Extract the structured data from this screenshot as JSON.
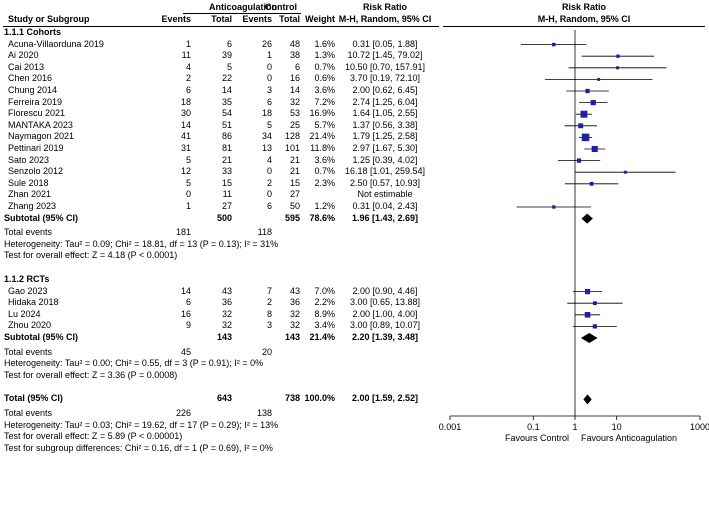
{
  "header": {
    "group1": "Anticoagulation",
    "group2": "Control",
    "rr_title": "Risk Ratio",
    "rr_title2": "Risk Ratio",
    "col_study": "Study or Subgroup",
    "col_events1": "Events",
    "col_total1": "Total",
    "col_events2": "Events",
    "col_total2": "Total",
    "col_weight": "Weight",
    "col_method": "M-H, Random, 95% CI",
    "col_method2": "M-H, Random, 95% CI"
  },
  "chart_data": {
    "type": "forest",
    "scale": "log",
    "xlim": [
      0.001,
      1000
    ],
    "x_ticks": [
      "0.001",
      "0.1",
      "1",
      "10",
      "1000"
    ],
    "xlabel_left": "Favours Control",
    "xlabel_right": "Favours Anticoagulation",
    "subgroups": [
      {
        "title": "1.1.1 Cohorts",
        "studies": [
          {
            "name": "Acuna-Villaorduna 2019",
            "e1": "1",
            "t1": "6",
            "e2": "26",
            "t2": "48",
            "weight": "1.6%",
            "ci": "0.31 [0.05, 1.88]",
            "rr": 0.31,
            "lo": 0.05,
            "hi": 1.88
          },
          {
            "name": "Ai 2020",
            "e1": "11",
            "t1": "39",
            "e2": "1",
            "t2": "38",
            "weight": "1.3%",
            "ci": "10.72 [1.45, 79.02]",
            "rr": 10.72,
            "lo": 1.45,
            "hi": 79.02
          },
          {
            "name": "Cai 2013",
            "e1": "4",
            "t1": "5",
            "e2": "0",
            "t2": "6",
            "weight": "0.7%",
            "ci": "10.50 [0.70, 157.91]",
            "rr": 10.5,
            "lo": 0.7,
            "hi": 157.91
          },
          {
            "name": "Chen 2016",
            "e1": "2",
            "t1": "22",
            "e2": "0",
            "t2": "16",
            "weight": "0.6%",
            "ci": "3.70 [0.19, 72.10]",
            "rr": 3.7,
            "lo": 0.19,
            "hi": 72.1
          },
          {
            "name": "Chung 2014",
            "e1": "6",
            "t1": "14",
            "e2": "3",
            "t2": "14",
            "weight": "3.6%",
            "ci": "2.00 [0.62, 6.45]",
            "rr": 2.0,
            "lo": 0.62,
            "hi": 6.45
          },
          {
            "name": "Ferreira 2019",
            "e1": "18",
            "t1": "35",
            "e2": "6",
            "t2": "32",
            "weight": "7.2%",
            "ci": "2.74 [1.25, 6.04]",
            "rr": 2.74,
            "lo": 1.25,
            "hi": 6.04
          },
          {
            "name": "Florescu 2021",
            "e1": "30",
            "t1": "54",
            "e2": "18",
            "t2": "53",
            "weight": "16.9%",
            "ci": "1.64 [1.05, 2.55]",
            "rr": 1.64,
            "lo": 1.05,
            "hi": 2.55
          },
          {
            "name": "MANTAKA 2023",
            "e1": "14",
            "t1": "51",
            "e2": "5",
            "t2": "25",
            "weight": "5.7%",
            "ci": "1.37 [0.56, 3.38]",
            "rr": 1.37,
            "lo": 0.56,
            "hi": 3.38
          },
          {
            "name": "Naymagon 2021",
            "e1": "41",
            "t1": "86",
            "e2": "34",
            "t2": "128",
            "weight": "21.4%",
            "ci": "1.79 [1.25, 2.58]",
            "rr": 1.79,
            "lo": 1.25,
            "hi": 2.58
          },
          {
            "name": "Pettinari 2019",
            "e1": "31",
            "t1": "81",
            "e2": "13",
            "t2": "101",
            "weight": "11.8%",
            "ci": "2.97 [1.67, 5.30]",
            "rr": 2.97,
            "lo": 1.67,
            "hi": 5.3
          },
          {
            "name": "Sato 2023",
            "e1": "5",
            "t1": "21",
            "e2": "4",
            "t2": "21",
            "weight": "3.6%",
            "ci": "1.25 [0.39, 4.02]",
            "rr": 1.25,
            "lo": 0.39,
            "hi": 4.02
          },
          {
            "name": "Senzolo 2012",
            "e1": "12",
            "t1": "33",
            "e2": "0",
            "t2": "21",
            "weight": "0.7%",
            "ci": "16.18 [1.01, 259.54]",
            "rr": 16.18,
            "lo": 1.01,
            "hi": 259.54
          },
          {
            "name": "Sule 2018",
            "e1": "5",
            "t1": "15",
            "e2": "2",
            "t2": "15",
            "weight": "2.3%",
            "ci": "2.50 [0.57, 10.93]",
            "rr": 2.5,
            "lo": 0.57,
            "hi": 10.93
          },
          {
            "name": "Zhan 2021",
            "e1": "0",
            "t1": "11",
            "e2": "0",
            "t2": "27",
            "weight": "",
            "ci": "Not estimable",
            "rr": null,
            "lo": null,
            "hi": null
          },
          {
            "name": "Zhang 2023",
            "e1": "1",
            "t1": "27",
            "e2": "6",
            "t2": "50",
            "weight": "1.2%",
            "ci": "0.31 [0.04, 2.43]",
            "rr": 0.31,
            "lo": 0.04,
            "hi": 2.43
          }
        ],
        "subtotal": {
          "label": "Subtotal (95% CI)",
          "t1": "500",
          "t2": "595",
          "weight": "78.6%",
          "ci": "1.96 [1.43, 2.69]",
          "rr": 1.96,
          "lo": 1.43,
          "hi": 2.69
        },
        "total_events": {
          "label": "Total events",
          "e1": "181",
          "e2": "118"
        },
        "heterogeneity": "Heterogeneity: Tau² = 0.09; Chi² = 18.81, df = 13 (P = 0.13); I² = 31%",
        "overall_effect": "Test for overall effect: Z = 4.18 (P < 0.0001)"
      },
      {
        "title": "1.1.2 RCTs",
        "studies": [
          {
            "name": "Gao 2023",
            "e1": "14",
            "t1": "43",
            "e2": "7",
            "t2": "43",
            "weight": "7.0%",
            "ci": "2.00 [0.90, 4.46]",
            "rr": 2.0,
            "lo": 0.9,
            "hi": 4.46
          },
          {
            "name": "Hidaka 2018",
            "e1": "6",
            "t1": "36",
            "e2": "2",
            "t2": "36",
            "weight": "2.2%",
            "ci": "3.00 [0.65, 13.88]",
            "rr": 3.0,
            "lo": 0.65,
            "hi": 13.88
          },
          {
            "name": "Lu 2024",
            "e1": "16",
            "t1": "32",
            "e2": "8",
            "t2": "32",
            "weight": "8.9%",
            "ci": "2.00 [1.00, 4.00]",
            "rr": 2.0,
            "lo": 1.0,
            "hi": 4.0
          },
          {
            "name": "Zhou 2020",
            "e1": "9",
            "t1": "32",
            "e2": "3",
            "t2": "32",
            "weight": "3.4%",
            "ci": "3.00 [0.89, 10.07]",
            "rr": 3.0,
            "lo": 0.89,
            "hi": 10.07
          }
        ],
        "subtotal": {
          "label": "Subtotal (95% CI)",
          "t1": "143",
          "t2": "143",
          "weight": "21.4%",
          "ci": "2.20 [1.39, 3.48]",
          "rr": 2.2,
          "lo": 1.39,
          "hi": 3.48
        },
        "total_events": {
          "label": "Total events",
          "e1": "45",
          "e2": "20"
        },
        "heterogeneity": "Heterogeneity: Tau² = 0.00; Chi² = 0.55, df = 3 (P = 0.91); I² = 0%",
        "overall_effect": "Test for overall effect: Z = 3.36 (P = 0.0008)"
      }
    ],
    "total": {
      "label": "Total (95% CI)",
      "t1": "643",
      "t2": "738",
      "weight": "100.0%",
      "ci": "2.00 [1.59, 2.52]",
      "rr": 2.0,
      "lo": 1.59,
      "hi": 2.52
    },
    "total_events": {
      "label": "Total events",
      "e1": "226",
      "e2": "138"
    },
    "heterogeneity": "Heterogeneity: Tau² = 0.03; Chi² = 19.62, df = 17 (P = 0.29); I² = 13%",
    "overall_effect": "Test for overall effect: Z = 5.89 (P < 0.00001)",
    "subgroup_differences": "Test for subgroup differences: Chi² = 0.16, df = 1 (P = 0.69), I² = 0%",
    "colors": {
      "square": "#1f1fa6",
      "diamond": "#000000",
      "line": "#000000"
    }
  }
}
